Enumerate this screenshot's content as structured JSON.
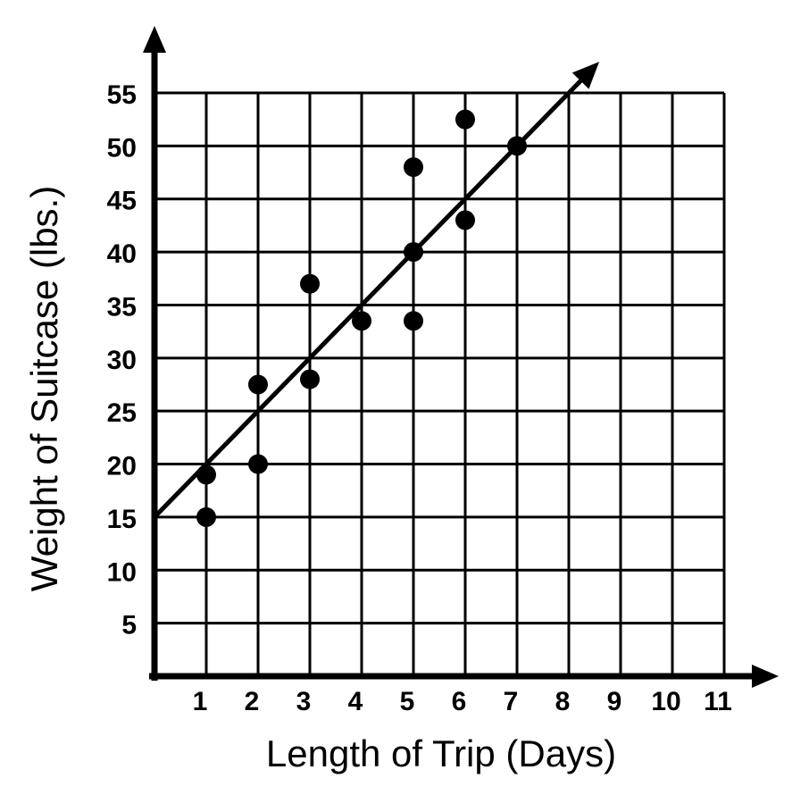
{
  "chart_data": {
    "type": "scatter",
    "title": "",
    "xlabel": "Length of Trip (Days)",
    "ylabel": "Weight of Suitcase (lbs.)",
    "x_ticks": [
      1,
      2,
      3,
      4,
      5,
      6,
      7,
      8,
      9,
      10,
      11
    ],
    "y_ticks": [
      5,
      10,
      15,
      20,
      25,
      30,
      35,
      40,
      45,
      50,
      55
    ],
    "xlim": [
      0,
      11
    ],
    "ylim": [
      0,
      55
    ],
    "grid": true,
    "legend": "none",
    "points": [
      [
        1,
        15
      ],
      [
        1,
        19
      ],
      [
        2,
        20
      ],
      [
        2,
        27.5
      ],
      [
        3,
        28
      ],
      [
        3,
        37
      ],
      [
        4,
        33.5
      ],
      [
        5,
        33.5
      ],
      [
        5,
        40
      ],
      [
        5,
        48
      ],
      [
        6,
        43
      ],
      [
        6,
        52.5
      ],
      [
        7,
        50
      ]
    ],
    "trend_line": {
      "slope": 5,
      "intercept": 15,
      "x_start": 0,
      "x_end": 8.6
    },
    "colors": {
      "foreground": "#000000",
      "background": "#ffffff"
    }
  }
}
